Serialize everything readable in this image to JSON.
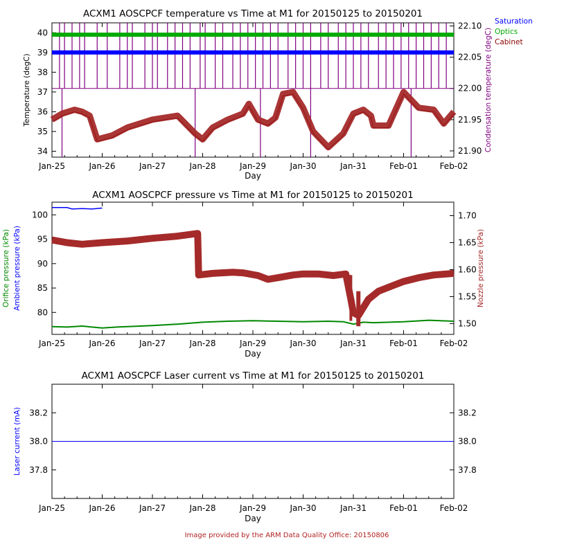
{
  "credit": "Image provided by the ARM Data Quality Office: 20150806",
  "colors": {
    "saturation": "#0000ff",
    "optics": "#00aa00",
    "cabinet": "#8b0000",
    "condensation": "#800080",
    "cabinet_line": "#a52a2a",
    "orifice": "#008800",
    "ambient": "#0000ff",
    "nozzle": "#a52a2a",
    "laser": "#0000ff",
    "credit": "#b22222"
  },
  "chart_data": [
    {
      "id": "temperature",
      "type": "line",
      "title": "ACXM1 AOSCPCF temperature vs Time at M1 for 20150125 to 20150201",
      "xlabel": "Day",
      "x_ticks": [
        "Jan-25",
        "Jan-26",
        "Jan-27",
        "Jan-28",
        "Jan-29",
        "Jan-30",
        "Jan-31",
        "Feb-01",
        "Feb-02"
      ],
      "xlim": [
        0,
        8
      ],
      "ylabel_left": "Temperature (degC)",
      "ylim_left": [
        33.7,
        40.5
      ],
      "y_ticks_left": [
        34,
        35,
        36,
        37,
        38,
        39,
        40
      ],
      "ylabel_right": "Condensation temperature (degC)",
      "ylim_right": [
        21.89,
        22.105
      ],
      "y_ticks_right": [
        "21.90",
        "21.95",
        "22.00",
        "22.05",
        "22.10"
      ],
      "legend": [
        {
          "label": "Saturation",
          "color": "#0000ff"
        },
        {
          "label": "Optics",
          "color": "#00aa00"
        },
        {
          "label": "Cabinet",
          "color": "#8b0000"
        }
      ],
      "legend_position": "outside-top-right",
      "series": [
        {
          "name": "Saturation",
          "axis": "left",
          "x": [
            0,
            8
          ],
          "y": [
            39.0,
            39.0
          ]
        },
        {
          "name": "Optics",
          "axis": "left",
          "x": [
            0,
            8
          ],
          "y": [
            39.9,
            39.9
          ]
        },
        {
          "name": "Cabinet",
          "axis": "left",
          "x": [
            0,
            0.2,
            0.45,
            0.6,
            0.75,
            0.9,
            1.2,
            1.5,
            2.0,
            2.5,
            2.85,
            3.0,
            3.2,
            3.5,
            3.8,
            3.92,
            4.1,
            4.3,
            4.45,
            4.6,
            4.8,
            5.0,
            5.2,
            5.5,
            5.8,
            6.0,
            6.2,
            6.35,
            6.4,
            6.7,
            7.0,
            7.3,
            7.6,
            7.8,
            8.0
          ],
          "y": [
            35.6,
            35.9,
            36.1,
            36.0,
            35.8,
            34.6,
            34.8,
            35.2,
            35.6,
            35.8,
            34.9,
            34.6,
            35.2,
            35.6,
            35.9,
            36.4,
            35.6,
            35.4,
            35.7,
            36.9,
            37.0,
            36.2,
            35.0,
            34.2,
            34.9,
            35.9,
            36.1,
            35.8,
            35.3,
            35.3,
            37.0,
            36.2,
            36.1,
            35.4,
            36.0
          ]
        },
        {
          "name": "Condensation",
          "axis": "right",
          "x": [
            0,
            8
          ],
          "y": [
            22.0,
            22.0
          ],
          "spike_days": [
            0.15,
            0.25,
            0.4,
            0.55,
            0.65,
            0.9,
            1.1,
            1.35,
            1.5,
            1.6,
            1.85,
            2.0,
            2.1,
            2.3,
            2.45,
            2.6,
            2.75,
            2.95,
            3.05,
            3.25,
            3.4,
            3.6,
            3.75,
            3.9,
            4.05,
            4.2,
            4.35,
            4.5,
            4.7,
            4.85,
            5.0,
            5.15,
            5.35,
            5.5,
            5.7,
            5.85,
            6.0,
            6.15,
            6.3,
            6.5,
            6.65,
            6.8,
            6.95,
            7.1,
            7.25,
            7.4,
            7.55,
            7.7,
            7.85
          ],
          "spike_max": 22.105,
          "dip_days": [
            0.2,
            2.85,
            4.15,
            5.15,
            7.15
          ],
          "dip_min": 21.89
        }
      ]
    },
    {
      "id": "pressure",
      "type": "line",
      "title": "ACXM1 AOSCPCF pressure vs Time at M1 for 20150125 to 20150201",
      "xlabel": "Day",
      "x_ticks": [
        "Jan-25",
        "Jan-26",
        "Jan-27",
        "Jan-28",
        "Jan-29",
        "Jan-30",
        "Jan-31",
        "Feb-01",
        "Feb-02"
      ],
      "xlim": [
        0,
        8
      ],
      "ylabel_left_1": "Orifice pressure (kPa)",
      "ylabel_left_2": "Ambient pressure (kPa)",
      "ylim_left": [
        75.5,
        102.6
      ],
      "y_ticks_left": [
        80,
        85,
        90,
        95,
        100
      ],
      "ylabel_right": "Nozzle pressure (kPa)",
      "ylim_right": [
        1.48,
        1.725
      ],
      "y_ticks_right": [
        "1.50",
        "1.55",
        "1.60",
        "1.65",
        "1.70"
      ],
      "series": [
        {
          "name": "Ambient",
          "axis": "left",
          "x": [
            0,
            0.3,
            0.4,
            0.6,
            0.8,
            1.0
          ],
          "y": [
            101.5,
            101.5,
            101.2,
            101.3,
            101.2,
            101.4
          ]
        },
        {
          "name": "Orifice",
          "axis": "left",
          "x": [
            0,
            0.3,
            0.6,
            1.0,
            1.3,
            2.0,
            2.5,
            3.0,
            3.5,
            4.0,
            4.5,
            5.0,
            5.5,
            5.8,
            6.0,
            6.2,
            6.4,
            7.0,
            7.5,
            8.0
          ],
          "y": [
            77.1,
            77.0,
            77.2,
            76.8,
            77.0,
            77.3,
            77.6,
            78.0,
            78.2,
            78.3,
            78.2,
            78.1,
            78.2,
            78.1,
            77.6,
            78.0,
            77.9,
            78.1,
            78.4,
            78.2
          ]
        },
        {
          "name": "Nozzle",
          "axis": "right",
          "x": [
            0,
            0.3,
            0.6,
            1.0,
            1.5,
            2.0,
            2.5,
            2.9,
            2.92,
            3.2,
            3.6,
            3.8,
            4.1,
            4.3,
            4.5,
            4.8,
            5.0,
            5.3,
            5.6,
            5.85,
            5.95,
            6.0,
            6.1,
            6.3,
            6.5,
            6.8,
            7.0,
            7.3,
            7.6,
            8.0
          ],
          "y": [
            1.655,
            1.65,
            1.647,
            1.65,
            1.653,
            1.658,
            1.662,
            1.667,
            1.59,
            1.593,
            1.595,
            1.594,
            1.589,
            1.582,
            1.585,
            1.59,
            1.592,
            1.592,
            1.589,
            1.592,
            1.545,
            1.52,
            1.515,
            1.545,
            1.56,
            1.571,
            1.578,
            1.585,
            1.59,
            1.593
          ]
        }
      ]
    },
    {
      "id": "laser",
      "type": "line",
      "title": "ACXM1 AOSCPCF Laser current vs Time at M1 for 20150125 to 20150201",
      "xlabel": "Day",
      "x_ticks": [
        "Jan-25",
        "Jan-26",
        "Jan-27",
        "Jan-28",
        "Jan-29",
        "Jan-30",
        "Jan-31",
        "Feb-01",
        "Feb-02"
      ],
      "xlim": [
        0,
        8
      ],
      "ylabel_left": "Laser current (mA)",
      "ylim_left": [
        37.6,
        38.4
      ],
      "y_ticks_left": [
        "37.8",
        "38.0",
        "38.2"
      ],
      "y_ticks_right": [
        "37.8",
        "38.0",
        "38.2"
      ],
      "series": [
        {
          "name": "Laser current",
          "axis": "left",
          "x": [
            0,
            8
          ],
          "y": [
            38.0,
            38.0
          ]
        }
      ]
    }
  ]
}
